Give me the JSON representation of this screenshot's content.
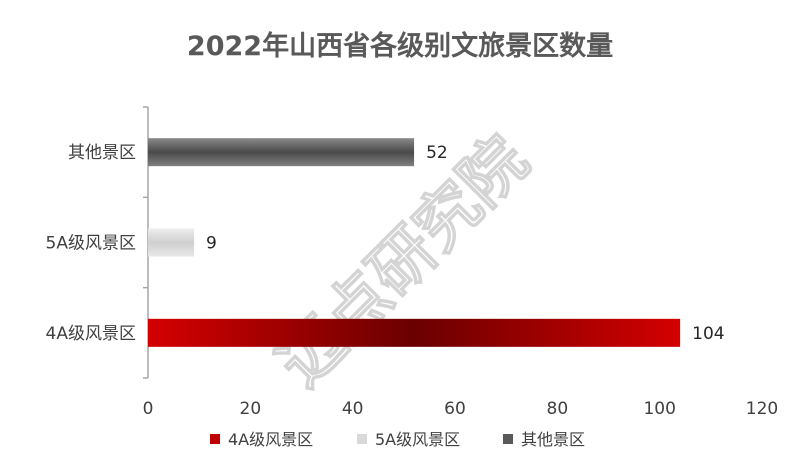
{
  "chart_data": {
    "type": "bar",
    "orientation": "horizontal",
    "title": "2022年山西省各级别文旅景区数量",
    "categories": [
      "其他景区",
      "5A级风景区",
      "4A级风景区"
    ],
    "values": [
      52,
      9,
      104
    ],
    "series_names": [
      "4A级风景区",
      "5A级风景区",
      "其他景区"
    ],
    "xlim": [
      0,
      120
    ],
    "xticks": [
      0,
      20,
      40,
      60,
      80,
      100,
      120
    ],
    "grid": false,
    "legend_position": "bottom",
    "colors": {
      "其他景区": "#595959",
      "5A级风景区": "#d9d9d9",
      "4A级风景区": "#c00000"
    }
  },
  "watermark": "迈点研究院"
}
